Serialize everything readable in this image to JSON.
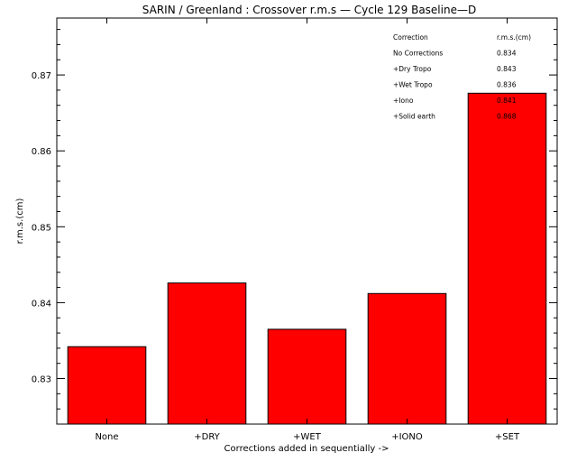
{
  "chart_data": {
    "type": "bar",
    "title": "SARIN / Greenland : Crossover r.m.s — Cycle 129 Baseline—D",
    "xlabel": "Corrections added in sequentially ->",
    "ylabel": "r.m.s.(cm)",
    "categories": [
      "None",
      "+DRY",
      "+WET",
      "+IONO",
      "+SET"
    ],
    "values": [
      0.8342,
      0.8426,
      0.8365,
      0.8412,
      0.8676
    ],
    "ylim": [
      0.824,
      0.8775
    ],
    "yticks": [
      0.83,
      0.84,
      0.85,
      0.86,
      0.87
    ],
    "ytick_labels": [
      "0.83",
      "0.84",
      "0.85",
      "0.86",
      "0.87"
    ],
    "bar_color": "#ff0000",
    "grid": false,
    "legend_table": {
      "placement": "top-right",
      "headers": [
        "Correction",
        "r.m.s.(cm)"
      ],
      "rows": [
        [
          "No Corrections",
          "0.834"
        ],
        [
          "+Dry Tropo",
          "0.843"
        ],
        [
          "+Wet Tropo",
          "0.836"
        ],
        [
          "+Iono",
          "0.841"
        ],
        [
          "+Solid earth",
          "0.868"
        ]
      ]
    }
  }
}
